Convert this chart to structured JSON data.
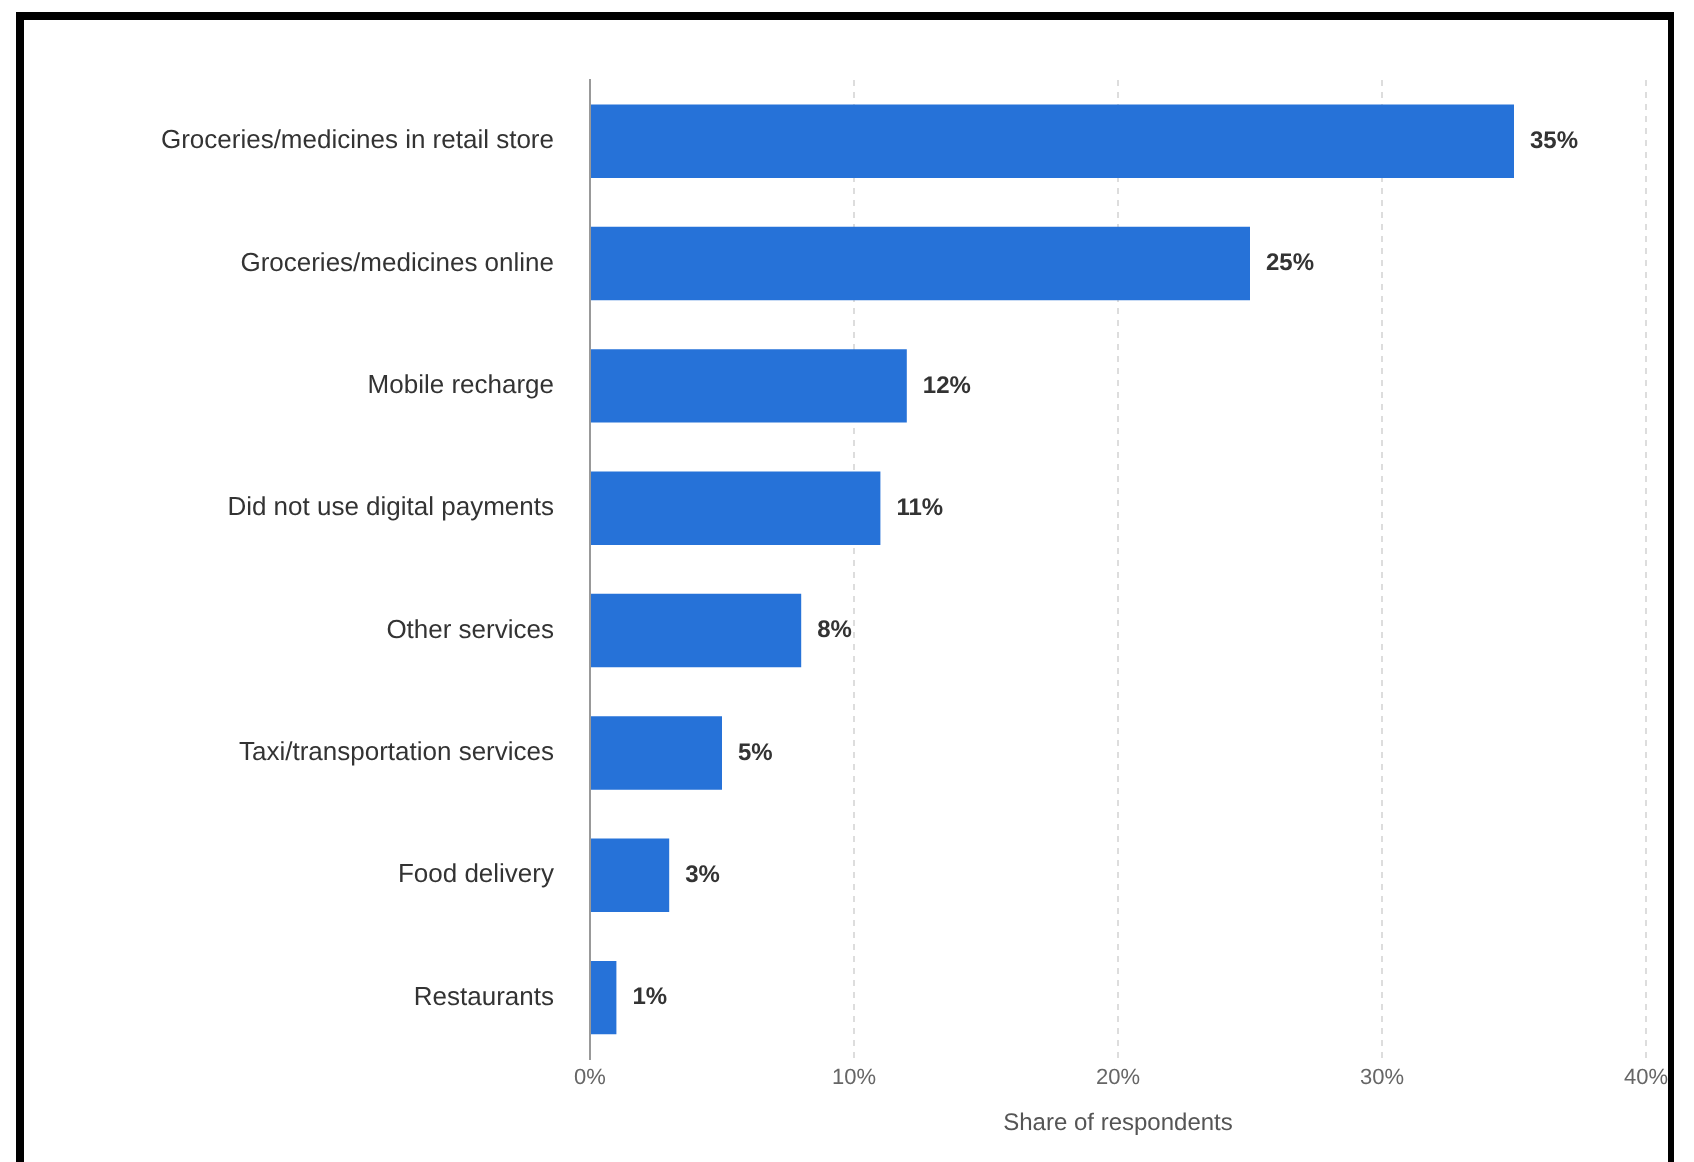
{
  "chart_data": {
    "type": "bar",
    "orientation": "horizontal",
    "xlabel": "Share of respondents",
    "categories": [
      "Groceries/medicines in retail store",
      "Groceries/medicines online",
      "Mobile recharge",
      "Did not use digital payments",
      "Other services",
      "Taxi/transportation services",
      "Food delivery",
      "Restaurants"
    ],
    "values": [
      35,
      25,
      12,
      11,
      8,
      5,
      3,
      1
    ],
    "color": "#2672d8",
    "value_labels": [
      "35%",
      "25%",
      "12%",
      "11%",
      "8%",
      "5%",
      "3%",
      "1%"
    ],
    "xlim": [
      0,
      40
    ],
    "xticks": [
      {
        "value": 0,
        "label": "0%"
      },
      {
        "value": 10,
        "label": "10%"
      },
      {
        "value": 20,
        "label": "20%"
      },
      {
        "value": 30,
        "label": "30%"
      },
      {
        "value": 40,
        "label": "40%"
      }
    ],
    "grid": "x",
    "legend": false
  }
}
